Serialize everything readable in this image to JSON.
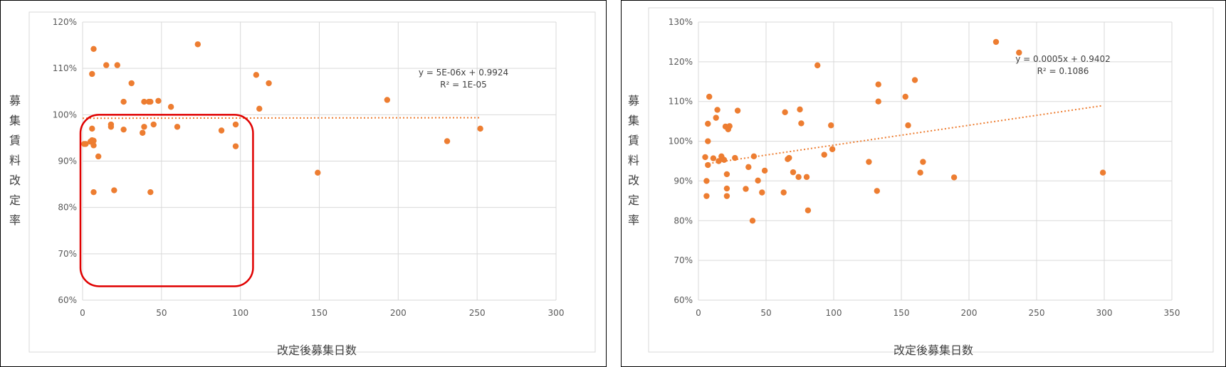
{
  "chart_data": [
    {
      "type": "scatter",
      "ylabel": "募集賃料改定率",
      "xlabel": "改定後募集日数",
      "xlim": [
        0,
        300
      ],
      "xticks": [
        0,
        50,
        100,
        150,
        200,
        250,
        300
      ],
      "ylim": [
        60,
        120
      ],
      "yticks": [
        60,
        70,
        80,
        90,
        100,
        110,
        120
      ],
      "ytick_labels": [
        "60%",
        "70%",
        "80%",
        "90%",
        "100%",
        "110%",
        "120%"
      ],
      "trendline": {
        "equation": "y = 5E-06x + 0.9924",
        "r2": "R² = 1E-05",
        "x_range": [
          0,
          252
        ],
        "slope_pct": 0.0005,
        "intercept_pct": 99.24
      },
      "highlight": {
        "color": "#e00000",
        "x_range": [
          0,
          108
        ],
        "y_range": [
          63,
          100
        ]
      },
      "points": [
        {
          "x": 1,
          "y": 93.7
        },
        {
          "x": 2,
          "y": 93.7
        },
        {
          "x": 5,
          "y": 94.2
        },
        {
          "x": 6,
          "y": 94.5
        },
        {
          "x": 6,
          "y": 108.8
        },
        {
          "x": 6,
          "y": 97.0
        },
        {
          "x": 7,
          "y": 94.4
        },
        {
          "x": 7,
          "y": 93.4
        },
        {
          "x": 7,
          "y": 83.3
        },
        {
          "x": 7,
          "y": 114.2
        },
        {
          "x": 10,
          "y": 91.0
        },
        {
          "x": 15,
          "y": 110.7
        },
        {
          "x": 18,
          "y": 97.9
        },
        {
          "x": 18,
          "y": 97.4
        },
        {
          "x": 20,
          "y": 83.7
        },
        {
          "x": 22,
          "y": 110.7
        },
        {
          "x": 26,
          "y": 102.8
        },
        {
          "x": 26,
          "y": 96.8
        },
        {
          "x": 31,
          "y": 106.8
        },
        {
          "x": 38,
          "y": 96.1
        },
        {
          "x": 39,
          "y": 102.8
        },
        {
          "x": 39,
          "y": 97.4
        },
        {
          "x": 42,
          "y": 102.8
        },
        {
          "x": 43,
          "y": 102.8
        },
        {
          "x": 43,
          "y": 83.3
        },
        {
          "x": 45,
          "y": 97.9
        },
        {
          "x": 48,
          "y": 103.0
        },
        {
          "x": 56,
          "y": 101.7
        },
        {
          "x": 60,
          "y": 97.4
        },
        {
          "x": 73,
          "y": 115.2
        },
        {
          "x": 88,
          "y": 96.6
        },
        {
          "x": 97,
          "y": 97.9
        },
        {
          "x": 97,
          "y": 93.2
        },
        {
          "x": 110,
          "y": 108.6
        },
        {
          "x": 112,
          "y": 101.3
        },
        {
          "x": 118,
          "y": 106.8
        },
        {
          "x": 149,
          "y": 87.5
        },
        {
          "x": 193,
          "y": 103.2
        },
        {
          "x": 231,
          "y": 94.3
        },
        {
          "x": 252,
          "y": 97.0
        }
      ]
    },
    {
      "type": "scatter",
      "ylabel": "募集賃料改定率",
      "xlabel": "改定後募集日数",
      "xlim": [
        0,
        350
      ],
      "xticks": [
        0,
        50,
        100,
        150,
        200,
        250,
        300,
        350
      ],
      "ylim": [
        60,
        130
      ],
      "yticks": [
        60,
        70,
        80,
        90,
        100,
        110,
        120,
        130
      ],
      "ytick_labels": [
        "60%",
        "70%",
        "80%",
        "90%",
        "100%",
        "110%",
        "120%",
        "130%"
      ],
      "trendline": {
        "equation": "y = 0.0005x + 0.9402",
        "r2": "R² = 0.1086",
        "x_range": [
          5,
          299
        ],
        "slope_pct": 0.05,
        "intercept_pct": 94.02
      },
      "points": [
        {
          "x": 5,
          "y": 96.0
        },
        {
          "x": 6,
          "y": 90.0
        },
        {
          "x": 6,
          "y": 86.2
        },
        {
          "x": 7,
          "y": 94.0
        },
        {
          "x": 7,
          "y": 104.4
        },
        {
          "x": 7,
          "y": 100.0
        },
        {
          "x": 8,
          "y": 111.2
        },
        {
          "x": 11,
          "y": 95.7
        },
        {
          "x": 13,
          "y": 105.9
        },
        {
          "x": 14,
          "y": 107.9
        },
        {
          "x": 15,
          "y": 95.0
        },
        {
          "x": 17,
          "y": 96.2
        },
        {
          "x": 18,
          "y": 95.5
        },
        {
          "x": 19,
          "y": 95.3
        },
        {
          "x": 20,
          "y": 103.7
        },
        {
          "x": 21,
          "y": 86.2
        },
        {
          "x": 21,
          "y": 88.1
        },
        {
          "x": 21,
          "y": 91.7
        },
        {
          "x": 22,
          "y": 103.0
        },
        {
          "x": 23,
          "y": 103.8
        },
        {
          "x": 27,
          "y": 95.8
        },
        {
          "x": 29,
          "y": 107.7
        },
        {
          "x": 35,
          "y": 88.0
        },
        {
          "x": 37,
          "y": 93.5
        },
        {
          "x": 40,
          "y": 80.0
        },
        {
          "x": 41,
          "y": 96.2
        },
        {
          "x": 44,
          "y": 90.1
        },
        {
          "x": 47,
          "y": 87.1
        },
        {
          "x": 49,
          "y": 92.6
        },
        {
          "x": 63,
          "y": 87.1
        },
        {
          "x": 64,
          "y": 107.3
        },
        {
          "x": 66,
          "y": 95.5
        },
        {
          "x": 67,
          "y": 95.8
        },
        {
          "x": 70,
          "y": 92.2
        },
        {
          "x": 74,
          "y": 91.0
        },
        {
          "x": 75,
          "y": 108.0
        },
        {
          "x": 76,
          "y": 104.5
        },
        {
          "x": 80,
          "y": 91.0
        },
        {
          "x": 81,
          "y": 82.6
        },
        {
          "x": 88,
          "y": 119.1
        },
        {
          "x": 93,
          "y": 96.6
        },
        {
          "x": 98,
          "y": 104.0
        },
        {
          "x": 99,
          "y": 98.0
        },
        {
          "x": 126,
          "y": 94.8
        },
        {
          "x": 132,
          "y": 87.5
        },
        {
          "x": 133,
          "y": 114.3
        },
        {
          "x": 133,
          "y": 110.0
        },
        {
          "x": 153,
          "y": 111.2
        },
        {
          "x": 155,
          "y": 104.0
        },
        {
          "x": 160,
          "y": 115.4
        },
        {
          "x": 164,
          "y": 92.1
        },
        {
          "x": 166,
          "y": 94.8
        },
        {
          "x": 189,
          "y": 90.9
        },
        {
          "x": 220,
          "y": 125.0
        },
        {
          "x": 237,
          "y": 122.3
        },
        {
          "x": 299,
          "y": 92.1
        }
      ]
    }
  ]
}
